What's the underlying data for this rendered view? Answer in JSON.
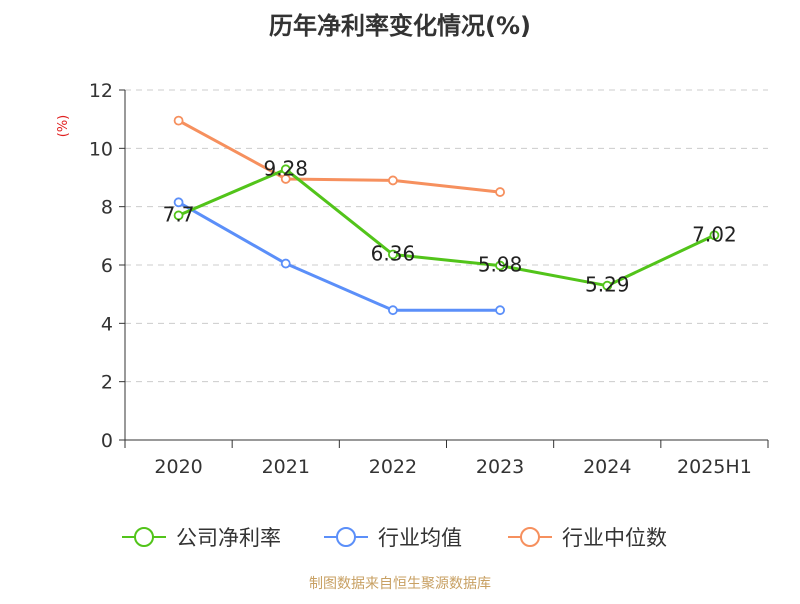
{
  "chart_data": {
    "type": "line",
    "title": "历年净利率变化情况(%)",
    "ylabel": "(%)",
    "xlabel": "",
    "categories": [
      "2020",
      "2021",
      "2022",
      "2023",
      "2024",
      "2025H1"
    ],
    "ylim": [
      0,
      12
    ],
    "yticks": [
      0,
      2,
      4,
      6,
      8,
      10,
      12
    ],
    "grid": true,
    "legend_position": "bottom",
    "series": [
      {
        "name": "公司净利率",
        "color": "#52c41a",
        "values": [
          7.7,
          9.28,
          6.36,
          5.98,
          5.29,
          7.02
        ],
        "labels": [
          "7.7",
          "9.28",
          "6.36",
          "5.98",
          "5.29",
          "7.02"
        ]
      },
      {
        "name": "行业均值",
        "color": "#5b8ff9",
        "values": [
          8.15,
          6.05,
          4.45,
          4.45,
          null,
          null
        ]
      },
      {
        "name": "行业中位数",
        "color": "#f6905e",
        "values": [
          10.95,
          8.95,
          8.9,
          8.5,
          null,
          null
        ]
      }
    ]
  },
  "footer": {
    "source": "制图数据来自恒生聚源数据库"
  },
  "colors": {
    "title": "#333333",
    "axis": "#333333",
    "ylabel": "#e02020",
    "grid": "#cccccc",
    "footer": "#c8a063"
  }
}
